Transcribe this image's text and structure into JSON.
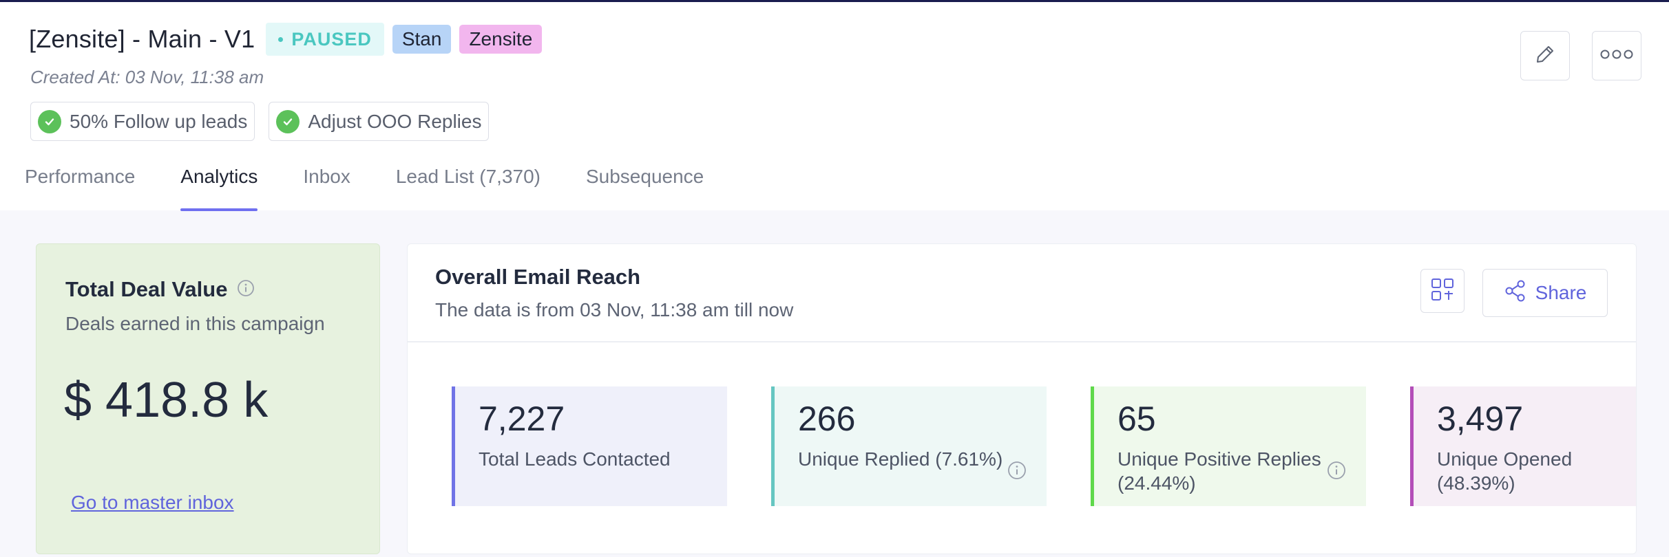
{
  "header": {
    "title": "[Zensite] - Main - V1",
    "status": "PAUSED",
    "tags": [
      "Stan",
      "Zensite"
    ],
    "created_at": "Created At: 03 Nov, 11:38 am",
    "chips": [
      "50% Follow up leads",
      "Adjust OOO Replies"
    ],
    "tabs": [
      "Performance",
      "Analytics",
      "Inbox",
      "Lead List (7,370)",
      "Subsequence"
    ],
    "active_tab": "Analytics"
  },
  "deal": {
    "title": "Total Deal Value",
    "subtitle": "Deals earned in this campaign",
    "amount": "$ 418.8 k",
    "link": "Go to master inbox"
  },
  "reach": {
    "title": "Overall Email Reach",
    "subtitle": "The data is from 03 Nov, 11:38 am till now",
    "share_label": "Share",
    "stats": [
      {
        "value": "7,227",
        "label": "Total Leads Contacted"
      },
      {
        "value": "266",
        "label": "Unique Replied (7.61%)"
      },
      {
        "value": "65",
        "label": "Unique Positive Replies (24.44%)"
      },
      {
        "value": "3,497",
        "label": "Unique Opened (48.39%)"
      }
    ]
  },
  "colors": {
    "accent": "#6f6ff0",
    "status_paused": "#4ac7c0",
    "tag_stan": "#b7d4f7",
    "tag_zensite": "#f2b6ee",
    "deal_bg": "#e7f2df",
    "stat_contacted": "#7073e6",
    "stat_replied": "#66c6c1",
    "stat_positive": "#5fd94a",
    "stat_opened": "#b34eb8"
  },
  "icons": [
    "edit-icon",
    "more-options-icon",
    "check-circle-icon",
    "info-icon",
    "qr-code-icon",
    "share-icon"
  ]
}
